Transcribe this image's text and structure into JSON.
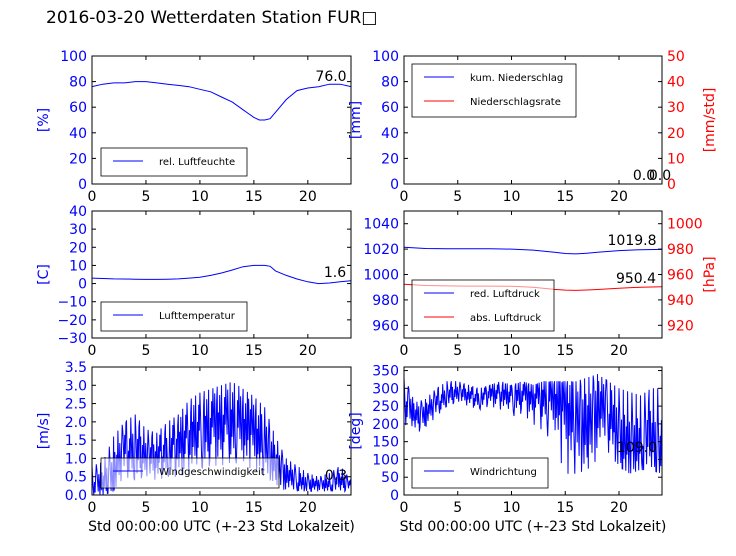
{
  "title": "2016-03-20 Wetterdaten Station FUR□",
  "colors": {
    "blue": "#0000ff",
    "red": "#ff0000",
    "black": "#000000"
  },
  "chart_data": [
    {
      "type": "line",
      "xlim": [
        0,
        24
      ],
      "xticks": [
        "0",
        "5",
        "10",
        "15",
        "20"
      ],
      "ylim": [
        0,
        100
      ],
      "yticks": [
        "0",
        "20",
        "40",
        "60",
        "80",
        "100"
      ],
      "ylabel": "[%]",
      "last_value": "76.0",
      "legend_loc": "lower-left",
      "series": [
        {
          "name": "rel. Luftfeuchte",
          "color": "#0000ff",
          "x": [
            0,
            1,
            2,
            3,
            4,
            5,
            6,
            7,
            8,
            9,
            10,
            11,
            12,
            13,
            14,
            14.5,
            15,
            15.5,
            16,
            16.5,
            17,
            18,
            19,
            20,
            21,
            22,
            23,
            24
          ],
          "y": [
            76,
            78,
            79,
            79,
            80,
            80,
            79,
            78,
            77,
            76,
            74,
            72,
            68,
            64,
            58,
            55,
            52,
            50,
            50,
            51,
            56,
            66,
            73,
            75,
            76,
            78,
            78,
            76
          ]
        }
      ]
    },
    {
      "type": "line",
      "xlim": [
        0,
        24
      ],
      "xticks": [
        "0",
        "5",
        "10",
        "15",
        "20"
      ],
      "ylim": [
        0,
        100
      ],
      "yticks": [
        "0",
        "20",
        "40",
        "60",
        "80",
        "100"
      ],
      "ylabel": "[mm]",
      "y2lim": [
        0,
        50
      ],
      "y2ticks": [
        "0",
        "10",
        "20",
        "30",
        "40",
        "50"
      ],
      "y2label": "[mm/std]",
      "last_value": "0.0",
      "last_value_2": "0.0",
      "legend_loc": "top-left",
      "series": [
        {
          "name": "kum. Niederschlag",
          "color": "#0000ff",
          "axis": "left",
          "x": [
            0,
            24
          ],
          "y": [
            0,
            0
          ]
        },
        {
          "name": "Niederschlagsrate",
          "color": "#ff0000",
          "axis": "right",
          "x": [
            0,
            24
          ],
          "y": [
            0,
            0
          ]
        }
      ]
    },
    {
      "type": "line",
      "xlim": [
        0,
        24
      ],
      "xticks": [
        "0",
        "5",
        "10",
        "15",
        "20"
      ],
      "ylim": [
        -30,
        40
      ],
      "yticks": [
        "−30",
        "−20",
        "−10",
        "0",
        "10",
        "20",
        "30",
        "40"
      ],
      "ylabel": "[C]",
      "last_value": "1.6",
      "legend_loc": "lower-left",
      "series": [
        {
          "name": "Lufttemperatur",
          "color": "#0000ff",
          "x": [
            0,
            1,
            2,
            3,
            4,
            5,
            6,
            7,
            8,
            9,
            10,
            11,
            12,
            13,
            14,
            15,
            16,
            16.5,
            17,
            18,
            19,
            20,
            21,
            22,
            23,
            24
          ],
          "y": [
            3,
            2.8,
            2.6,
            2.5,
            2.4,
            2.3,
            2.3,
            2.4,
            2.6,
            3,
            3.5,
            4.5,
            5.8,
            7.5,
            9.3,
            10,
            10,
            9.5,
            7,
            4.5,
            2.5,
            1,
            0,
            0.3,
            1,
            1.6
          ]
        }
      ]
    },
    {
      "type": "line",
      "xlim": [
        0,
        24
      ],
      "xticks": [
        "0",
        "5",
        "10",
        "15",
        "20"
      ],
      "ylim": [
        950,
        1050
      ],
      "yticks": [
        "960",
        "980",
        "1000",
        "1020",
        "1040"
      ],
      "y2lim": [
        910,
        1010
      ],
      "y2ticks": [
        "920",
        "940",
        "960",
        "980",
        "1000"
      ],
      "y2label": "[hPa]",
      "last_value": "1019.8",
      "last_value_2": "950.4",
      "legend_loc": "lower-left",
      "series": [
        {
          "name": "red. Luftdruck",
          "color": "#0000ff",
          "axis": "left",
          "x": [
            0,
            2,
            4,
            6,
            8,
            10,
            12,
            14,
            15,
            16,
            17,
            18,
            20,
            22,
            24
          ],
          "y": [
            1021.5,
            1020.5,
            1020.2,
            1020.2,
            1020.2,
            1020,
            1019.2,
            1017.5,
            1016.5,
            1016.2,
            1016.8,
            1017.5,
            1018.8,
            1019.5,
            1019.8
          ]
        },
        {
          "name": "abs. Luftdruck",
          "color": "#ff0000",
          "axis": "right",
          "x": [
            0,
            2,
            4,
            6,
            8,
            10,
            12,
            14,
            15,
            16,
            17,
            18,
            20,
            22,
            24
          ],
          "y": [
            952.3,
            951.3,
            951,
            950.9,
            950.9,
            950.7,
            949.9,
            948.3,
            947.7,
            947.5,
            947.8,
            948.2,
            949.2,
            950,
            950.4
          ]
        }
      ]
    },
    {
      "type": "line",
      "xlim": [
        0,
        24
      ],
      "xticks": [
        "0",
        "5",
        "10",
        "15",
        "20"
      ],
      "ylim": [
        0,
        3.5
      ],
      "yticks": [
        "0.0",
        "0.5",
        "1.0",
        "1.5",
        "2.0",
        "2.5",
        "3.0",
        "3.5"
      ],
      "ylabel": "[m/s]",
      "xlabel": "Std 00:00:00 UTC (+-23 Std Lokalzeit)",
      "last_value": "0.3",
      "legend_loc": "lower-left",
      "series": [
        {
          "name": "Windgeschwindigkeit",
          "color": "#0000ff",
          "x": [
            0,
            1,
            2,
            3,
            4,
            5,
            6,
            7,
            8,
            9,
            10,
            11,
            12,
            13,
            14,
            15,
            16,
            17,
            18,
            19,
            20,
            21,
            22,
            23,
            24
          ],
          "y": [
            0.4,
            0.3,
            0.6,
            1.3,
            1.2,
            1.1,
            1.0,
            1.2,
            1.3,
            1.5,
            1.7,
            1.8,
            1.9,
            2.0,
            1.8,
            1.7,
            1.3,
            0.8,
            0.5,
            0.4,
            0.3,
            0.3,
            0.3,
            0.4,
            0.3
          ],
          "min": [
            0,
            0,
            0.1,
            0.5,
            0.4,
            0.5,
            0.4,
            0.5,
            0.5,
            0.6,
            0.7,
            0.8,
            0.8,
            0.9,
            0.8,
            0.7,
            0.5,
            0.3,
            0.1,
            0.1,
            0.1,
            0.1,
            0.1,
            0.1,
            0.1
          ],
          "max": [
            0.8,
            0.9,
            1.6,
            2.0,
            2.2,
            1.8,
            1.7,
            2.0,
            2.2,
            2.6,
            2.8,
            2.9,
            3.0,
            3.1,
            2.9,
            2.7,
            2.4,
            1.6,
            1.0,
            0.8,
            0.6,
            0.5,
            0.6,
            0.8,
            0.4
          ]
        }
      ]
    },
    {
      "type": "line",
      "xlim": [
        0,
        24
      ],
      "xticks": [
        "0",
        "5",
        "10",
        "15",
        "20"
      ],
      "ylim": [
        0,
        360
      ],
      "yticks": [
        "0",
        "50",
        "100",
        "150",
        "200",
        "250",
        "300",
        "350"
      ],
      "ylabel": "[deg]",
      "xlabel": "Std 00:00:00 UTC (+-23 Std Lokalzeit)",
      "last_value": "109.0",
      "legend_loc": "lower-left",
      "series": [
        {
          "name": "Windrichtung",
          "color": "#0000ff",
          "x": [
            0,
            0.5,
            1,
            2,
            3,
            4,
            5,
            6,
            7,
            8,
            9,
            10,
            11,
            12,
            13,
            14,
            15,
            16,
            17,
            18,
            19,
            20,
            21,
            22,
            23,
            24
          ],
          "y": [
            280,
            250,
            220,
            230,
            260,
            280,
            290,
            280,
            270,
            285,
            280,
            275,
            280,
            270,
            275,
            260,
            240,
            200,
            180,
            230,
            250,
            160,
            140,
            150,
            170,
            109
          ],
          "min": [
            200,
            190,
            170,
            190,
            220,
            250,
            260,
            250,
            240,
            250,
            240,
            220,
            230,
            200,
            180,
            140,
            60,
            60,
            70,
            100,
            120,
            80,
            60,
            70,
            70,
            60
          ],
          "max": [
            330,
            300,
            260,
            270,
            300,
            320,
            320,
            310,
            300,
            310,
            320,
            310,
            320,
            310,
            320,
            320,
            320,
            320,
            330,
            340,
            320,
            300,
            290,
            280,
            300,
            300
          ]
        }
      ]
    }
  ]
}
